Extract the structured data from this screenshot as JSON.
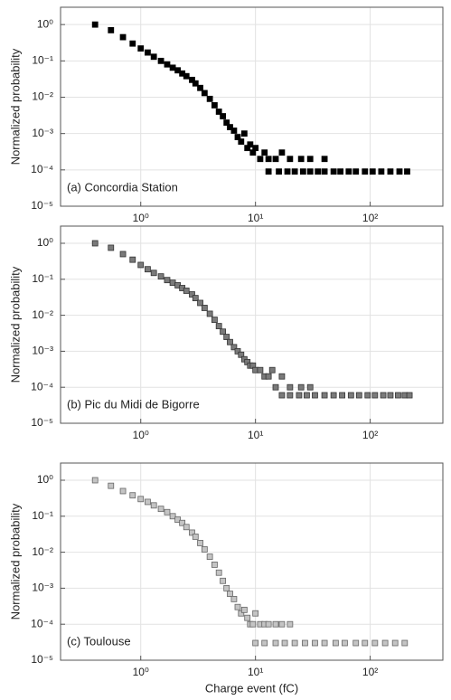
{
  "chart_data": [
    {
      "type": "scatter",
      "annotation": "(a) Concordia Station",
      "ylabel": "Normalized probability",
      "log_x": true,
      "log_y": true,
      "grid": true,
      "color": "#000000",
      "edge_color": "#000000",
      "xlim": [
        0.2,
        430
      ],
      "ylim": [
        1e-05,
        3
      ],
      "xticks": [
        {
          "value": 1,
          "label": "10⁰"
        },
        {
          "value": 10,
          "label": "10¹"
        },
        {
          "value": 100,
          "label": "10²"
        }
      ],
      "yticks": [
        {
          "value": 1,
          "label": "10⁰"
        },
        {
          "value": 0.1,
          "label": "10⁻¹"
        },
        {
          "value": 0.01,
          "label": "10⁻²"
        },
        {
          "value": 0.001,
          "label": "10⁻³"
        },
        {
          "value": 0.0001,
          "label": "10⁻⁴"
        },
        {
          "value": 1e-05,
          "label": "10⁻⁵"
        }
      ],
      "x": [
        0.4,
        0.55,
        0.7,
        0.85,
        1.0,
        1.15,
        1.3,
        1.5,
        1.7,
        1.9,
        2.1,
        2.3,
        2.5,
        2.8,
        3.0,
        3.3,
        3.6,
        4.0,
        4.4,
        4.8,
        5.2,
        5.6,
        6.0,
        6.5,
        7.0,
        7.5,
        8.0,
        8.5,
        9.0,
        9.5,
        10,
        11,
        12,
        13,
        15,
        17,
        20,
        25,
        30,
        40,
        13,
        16,
        19,
        22,
        26,
        30,
        35,
        40,
        48,
        55,
        65,
        75,
        90,
        105,
        125,
        150,
        180,
        210
      ],
      "values": [
        1,
        0.7,
        0.45,
        0.3,
        0.22,
        0.17,
        0.13,
        0.1,
        0.08,
        0.065,
        0.055,
        0.045,
        0.038,
        0.03,
        0.024,
        0.018,
        0.013,
        0.009,
        0.006,
        0.004,
        0.003,
        0.002,
        0.0015,
        0.0012,
        0.0008,
        0.0006,
        0.001,
        0.0004,
        0.0005,
        0.0003,
        0.0004,
        0.0002,
        0.0003,
        0.0002,
        0.0002,
        0.0003,
        0.0002,
        0.0002,
        0.0002,
        0.0002,
        9e-05,
        9e-05,
        9e-05,
        9e-05,
        9e-05,
        9e-05,
        9e-05,
        9e-05,
        9e-05,
        9e-05,
        9e-05,
        9e-05,
        9e-05,
        9e-05,
        9e-05,
        9e-05,
        9e-05,
        9e-05
      ]
    },
    {
      "type": "scatter",
      "annotation": "(b) Pic du Midi de Bigorre",
      "ylabel": "Normalized probability",
      "log_x": true,
      "log_y": true,
      "grid": true,
      "color": "#7a7a7a",
      "edge_color": "#333333",
      "xlim": [
        0.2,
        430
      ],
      "ylim": [
        1e-05,
        3
      ],
      "xticks": [
        {
          "value": 1,
          "label": "10⁰"
        },
        {
          "value": 10,
          "label": "10¹"
        },
        {
          "value": 100,
          "label": "10²"
        }
      ],
      "yticks": [
        {
          "value": 1,
          "label": "10⁰"
        },
        {
          "value": 0.1,
          "label": "10⁻¹"
        },
        {
          "value": 0.01,
          "label": "10⁻²"
        },
        {
          "value": 0.001,
          "label": "10⁻³"
        },
        {
          "value": 0.0001,
          "label": "10⁻⁴"
        },
        {
          "value": 1e-05,
          "label": "10⁻⁵"
        }
      ],
      "x": [
        0.4,
        0.55,
        0.7,
        0.85,
        1.0,
        1.15,
        1.3,
        1.5,
        1.7,
        1.9,
        2.1,
        2.3,
        2.5,
        2.8,
        3.0,
        3.3,
        3.6,
        4.0,
        4.4,
        4.8,
        5.2,
        5.6,
        6.0,
        6.5,
        7.0,
        7.5,
        8.0,
        8.5,
        9.0,
        9.5,
        10,
        11,
        12,
        13,
        14,
        15,
        17,
        20,
        25,
        30,
        17,
        20,
        24,
        28,
        33,
        40,
        48,
        57,
        68,
        80,
        95,
        110,
        130,
        150,
        175,
        200,
        220
      ],
      "values": [
        1,
        0.75,
        0.5,
        0.35,
        0.25,
        0.19,
        0.15,
        0.12,
        0.095,
        0.08,
        0.068,
        0.057,
        0.048,
        0.038,
        0.03,
        0.022,
        0.016,
        0.011,
        0.0075,
        0.005,
        0.0035,
        0.0025,
        0.0018,
        0.0013,
        0.001,
        0.0008,
        0.0006,
        0.0005,
        0.0004,
        0.0004,
        0.0003,
        0.0003,
        0.0002,
        0.0002,
        0.0003,
        0.0001,
        0.0002,
        0.0001,
        0.0001,
        0.0001,
        6e-05,
        6e-05,
        6e-05,
        6e-05,
        6e-05,
        6e-05,
        6e-05,
        6e-05,
        6e-05,
        6e-05,
        6e-05,
        6e-05,
        6e-05,
        6e-05,
        6e-05,
        6e-05,
        6e-05
      ]
    },
    {
      "type": "scatter",
      "annotation": "(c) Toulouse",
      "ylabel": "Normalized probability",
      "xlabel": "Charge event (fC)",
      "log_x": true,
      "log_y": true,
      "grid": true,
      "color": "#c4c4c4",
      "edge_color": "#666666",
      "xlim": [
        0.2,
        430
      ],
      "ylim": [
        1e-05,
        3
      ],
      "xticks": [
        {
          "value": 1,
          "label": "10⁰"
        },
        {
          "value": 10,
          "label": "10¹"
        },
        {
          "value": 100,
          "label": "10²"
        }
      ],
      "yticks": [
        {
          "value": 1,
          "label": "10⁰"
        },
        {
          "value": 0.1,
          "label": "10⁻¹"
        },
        {
          "value": 0.01,
          "label": "10⁻²"
        },
        {
          "value": 0.001,
          "label": "10⁻³"
        },
        {
          "value": 0.0001,
          "label": "10⁻⁴"
        },
        {
          "value": 1e-05,
          "label": "10⁻⁵"
        }
      ],
      "x": [
        0.4,
        0.55,
        0.7,
        0.85,
        1.0,
        1.15,
        1.3,
        1.5,
        1.7,
        1.9,
        2.1,
        2.3,
        2.5,
        2.8,
        3.0,
        3.3,
        3.6,
        4.0,
        4.4,
        4.8,
        5.2,
        5.6,
        6.0,
        6.5,
        7.0,
        7.5,
        8.0,
        8.5,
        9.0,
        9.5,
        10,
        11,
        12,
        13,
        15,
        17,
        20,
        10,
        12,
        15,
        18,
        22,
        27,
        33,
        40,
        50,
        60,
        75,
        90,
        110,
        135,
        165,
        200
      ],
      "values": [
        1,
        0.7,
        0.5,
        0.38,
        0.3,
        0.25,
        0.2,
        0.16,
        0.13,
        0.1,
        0.08,
        0.065,
        0.05,
        0.035,
        0.027,
        0.018,
        0.012,
        0.0075,
        0.0045,
        0.0027,
        0.0016,
        0.001,
        0.0007,
        0.0005,
        0.0003,
        0.0002,
        0.00025,
        0.00015,
        0.0001,
        0.0001,
        0.0002,
        0.0001,
        0.0001,
        0.0001,
        0.0001,
        0.0001,
        0.0001,
        3e-05,
        3e-05,
        3e-05,
        3e-05,
        3e-05,
        3e-05,
        3e-05,
        3e-05,
        3e-05,
        3e-05,
        3e-05,
        3e-05,
        3e-05,
        3e-05,
        3e-05,
        3e-05
      ]
    }
  ]
}
